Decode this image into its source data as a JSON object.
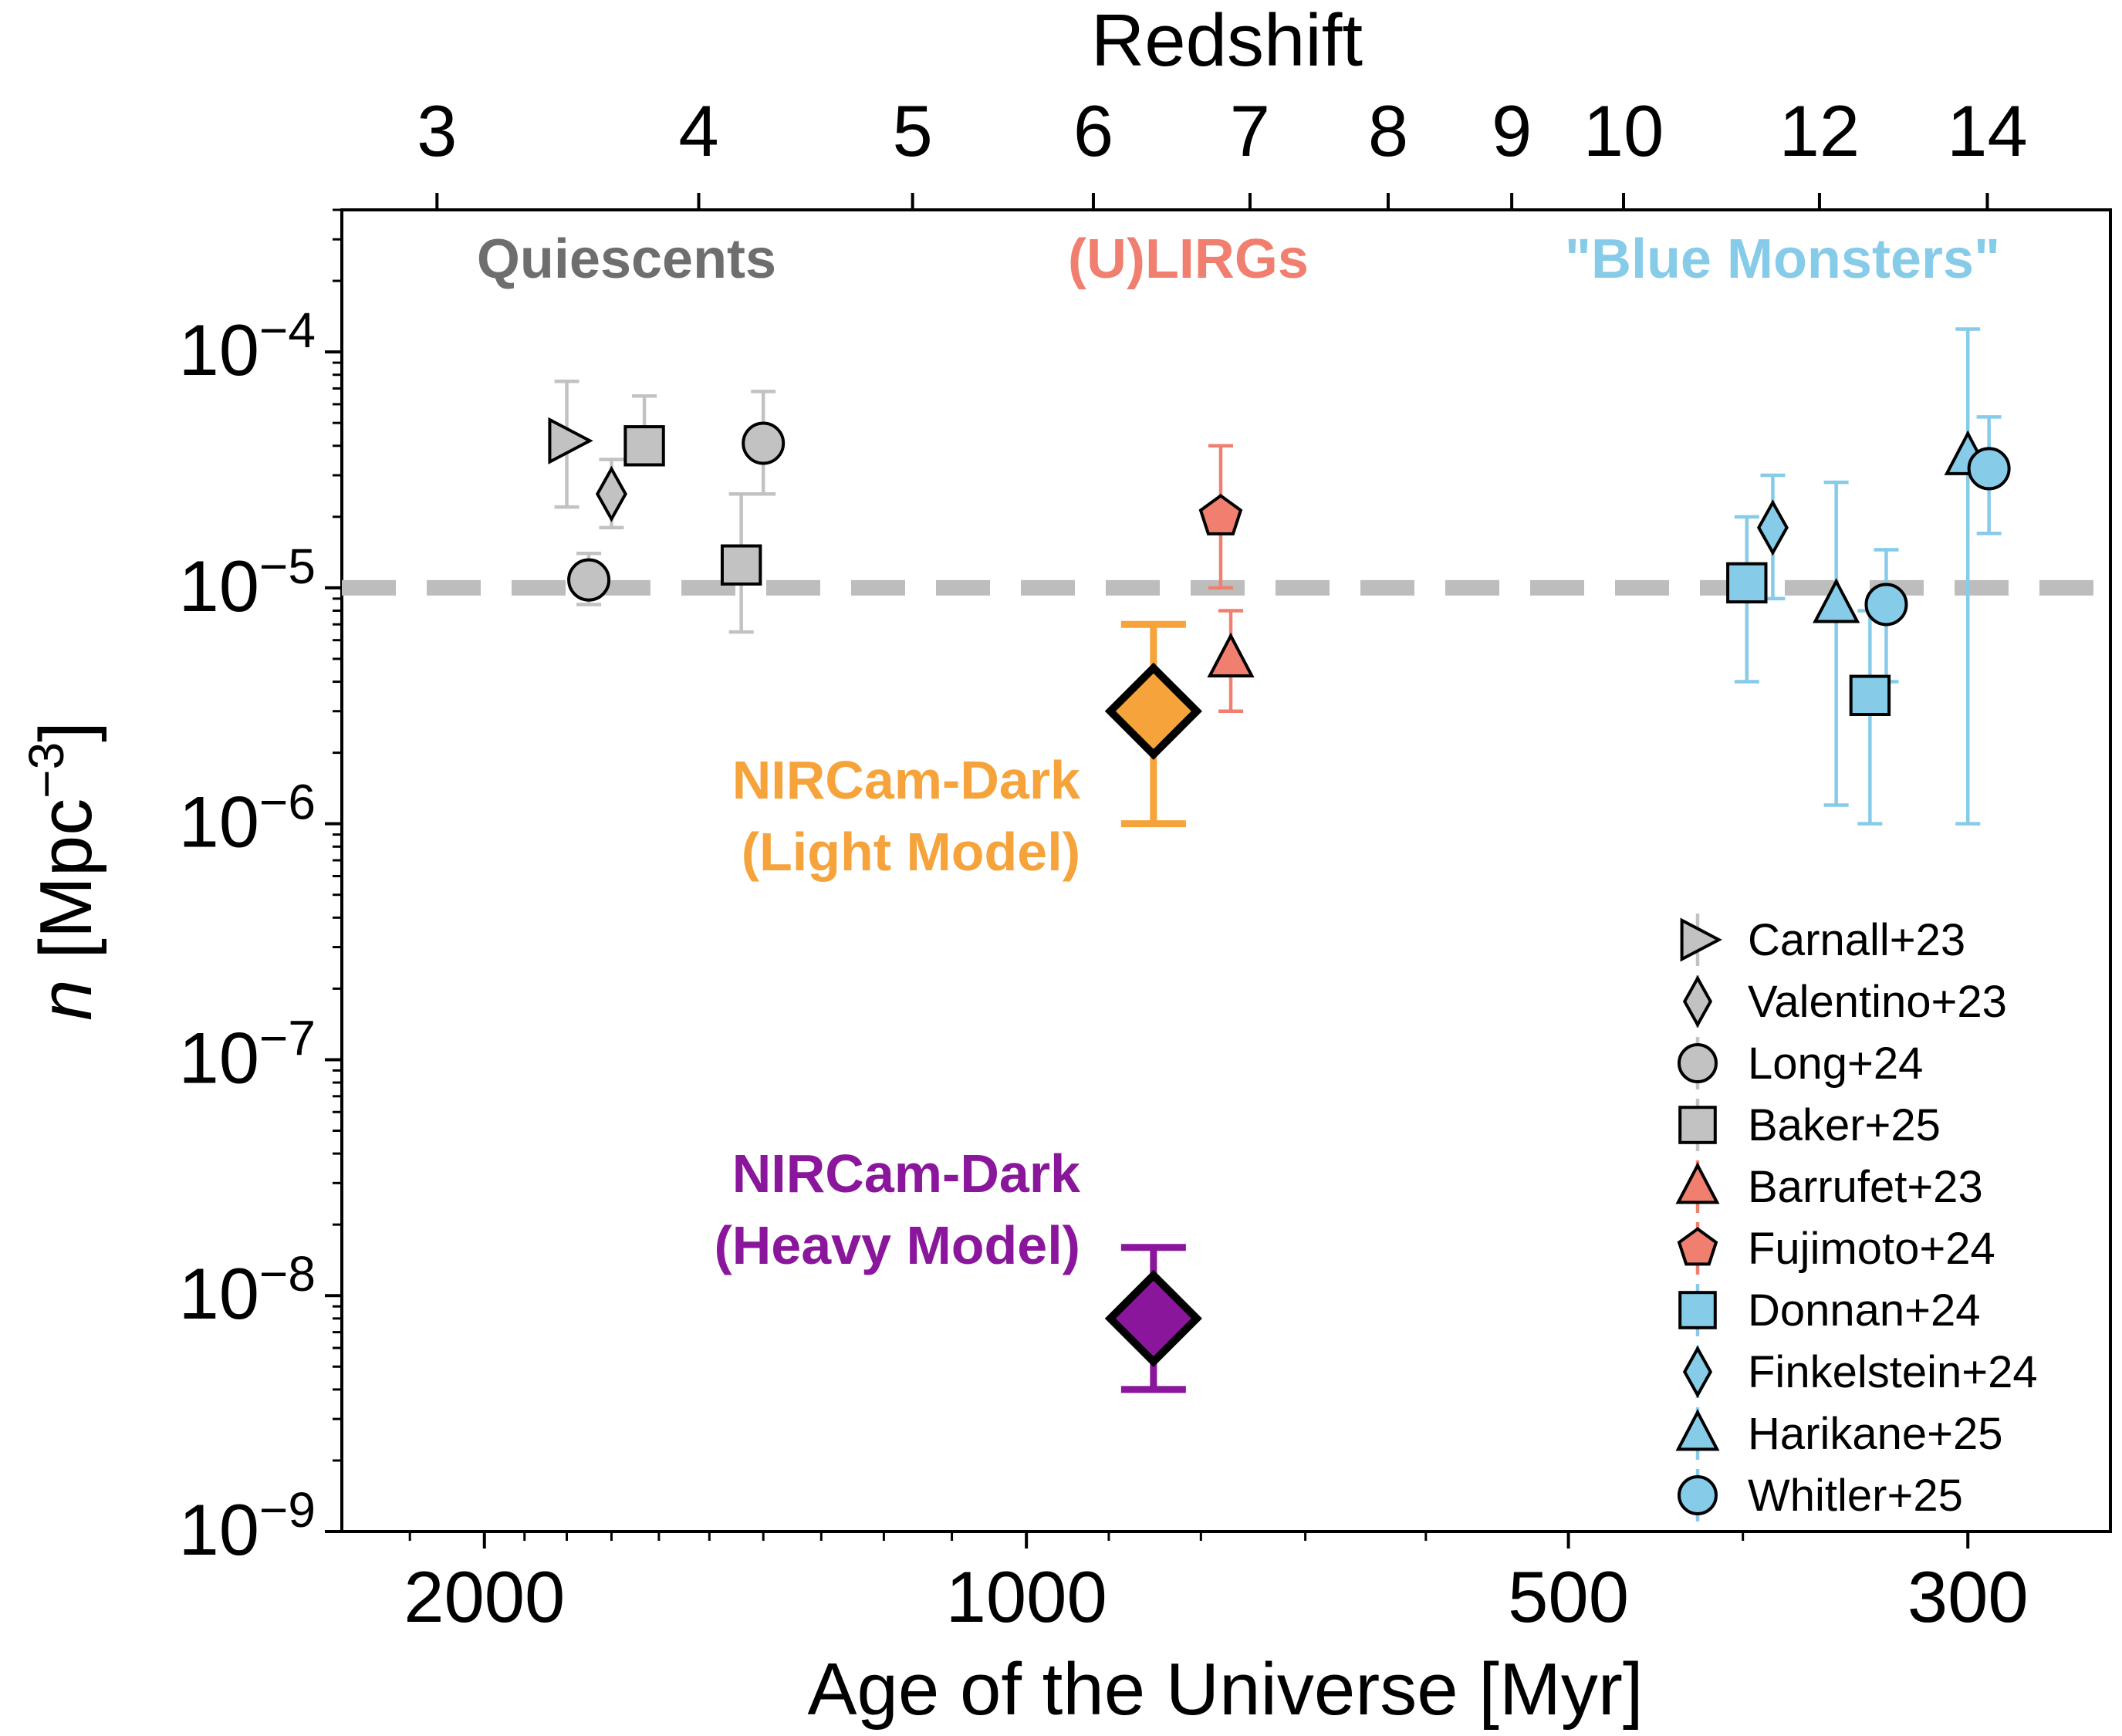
{
  "chart_data": {
    "type": "scatter",
    "x_axis": {
      "label": "Age of the Universe [Myr]",
      "scale": "log",
      "direction": "reversed",
      "range": [
        2400,
        250
      ],
      "ticks": [
        2000,
        1000,
        500,
        300
      ],
      "tick_labels": [
        "2000",
        "1000",
        "500",
        "300"
      ]
    },
    "top_axis": {
      "label": "Redshift",
      "ticks": [
        3,
        4,
        5,
        6,
        7,
        8,
        9,
        10,
        12,
        14
      ],
      "tick_labels": [
        "3",
        "4",
        "5",
        "6",
        "7",
        "8",
        "9",
        "10",
        "12",
        "14"
      ]
    },
    "y_axis": {
      "label_italic": "n",
      "label_rest": " [Mpc",
      "label_sup": "−3",
      "label_end": "]",
      "scale": "log",
      "range": [
        1e-09,
        0.0004
      ],
      "tick_base": "10",
      "ticks": [
        -9,
        -8,
        -7,
        -6,
        -5,
        -4
      ],
      "tick_exponents": [
        "−9",
        "−8",
        "−7",
        "−6",
        "−5",
        "−4"
      ]
    },
    "reference_line": {
      "y": 1e-05,
      "style": "dashed",
      "color": "#bdbdbd"
    },
    "group_labels": [
      {
        "text": "Quiescents",
        "color": "#6e6e6e"
      },
      {
        "text": "(U)LIRGs",
        "color": "#f07f6f"
      },
      {
        "text": "\"Blue Monsters\"",
        "color": "#86cbe8"
      }
    ],
    "highlights": [
      {
        "line1": "NIRCam-Dark",
        "line2": "(Light Model)",
        "color": "#f5a33a",
        "x": 850,
        "y": 3e-06,
        "y_low": 1e-06,
        "y_high": 7e-06
      },
      {
        "line1": "NIRCam-Dark",
        "line2": "(Heavy Model)",
        "color": "#8a179b",
        "x": 850,
        "y": 8e-09,
        "y_low": 4e-09,
        "y_high": 1.6e-08
      }
    ],
    "series": [
      {
        "name": "Carnall+23",
        "marker": "triangle-right",
        "color": "#c2c2c2",
        "err": "#c2c2c2",
        "points": [
          {
            "x": 1800,
            "y": 4.2e-05,
            "y_low": 2.2e-05,
            "y_high": 7.5e-05
          }
        ]
      },
      {
        "name": "Valentino+23",
        "marker": "thin-diamond",
        "color": "#c2c2c2",
        "err": "#c2c2c2",
        "points": [
          {
            "x": 1700,
            "y": 2.5e-05,
            "y_low": 1.8e-05,
            "y_high": 3.5e-05
          }
        ]
      },
      {
        "name": "Long+24",
        "marker": "circle",
        "color": "#c2c2c2",
        "err": "#c2c2c2",
        "points": [
          {
            "x": 1750,
            "y": 1.08e-05,
            "y_low": 8.5e-06,
            "y_high": 1.4e-05
          },
          {
            "x": 1400,
            "y": 4.1e-05,
            "y_low": 2.5e-05,
            "y_high": 6.8e-05
          }
        ]
      },
      {
        "name": "Baker+25",
        "marker": "square",
        "color": "#c2c2c2",
        "err": "#c2c2c2",
        "points": [
          {
            "x": 1630,
            "y": 4e-05,
            "y_low": 4e-05,
            "y_high": 6.5e-05
          },
          {
            "x": 1440,
            "y": 1.25e-05,
            "y_low": 6.5e-06,
            "y_high": 2.5e-05
          }
        ]
      },
      {
        "name": "Barrufet+23",
        "marker": "triangle-up",
        "color": "#f07f6f",
        "err": "#f07f6f",
        "points": [
          {
            "x": 770,
            "y": 5e-06,
            "y_low": 3e-06,
            "y_high": 8e-06
          }
        ]
      },
      {
        "name": "Fujimoto+24",
        "marker": "pentagon",
        "color": "#f07f6f",
        "err": "#f07f6f",
        "points": [
          {
            "x": 780,
            "y": 2e-05,
            "y_low": 1e-05,
            "y_high": 4e-05
          }
        ]
      },
      {
        "name": "Donnan+24",
        "marker": "square",
        "color": "#86cbe8",
        "err": "#86cbe8",
        "points": [
          {
            "x": 398,
            "y": 1.05e-05,
            "y_low": 4e-06,
            "y_high": 2e-05
          },
          {
            "x": 340,
            "y": 3.5e-06,
            "y_low": 1e-06,
            "y_high": 8e-06
          }
        ]
      },
      {
        "name": "Finkelstein+24",
        "marker": "thin-diamond",
        "color": "#86cbe8",
        "err": "#86cbe8",
        "points": [
          {
            "x": 385,
            "y": 1.8e-05,
            "y_low": 9e-06,
            "y_high": 3e-05
          }
        ]
      },
      {
        "name": "Harikane+25",
        "marker": "triangle-up",
        "color": "#86cbe8",
        "err": "#86cbe8",
        "points": [
          {
            "x": 355,
            "y": 8.5e-06,
            "y_low": 1.2e-06,
            "y_high": 2.8e-05
          },
          {
            "x": 300,
            "y": 3.6e-05,
            "y_low": 1e-06,
            "y_high": 0.000125
          }
        ]
      },
      {
        "name": "Whitler+25",
        "marker": "circle",
        "color": "#86cbe8",
        "err": "#86cbe8",
        "points": [
          {
            "x": 333,
            "y": 8.5e-06,
            "y_low": 4e-06,
            "y_high": 1.45e-05
          },
          {
            "x": 292,
            "y": 3.2e-05,
            "y_low": 1.7e-05,
            "y_high": 5.3e-05
          }
        ]
      }
    ]
  }
}
